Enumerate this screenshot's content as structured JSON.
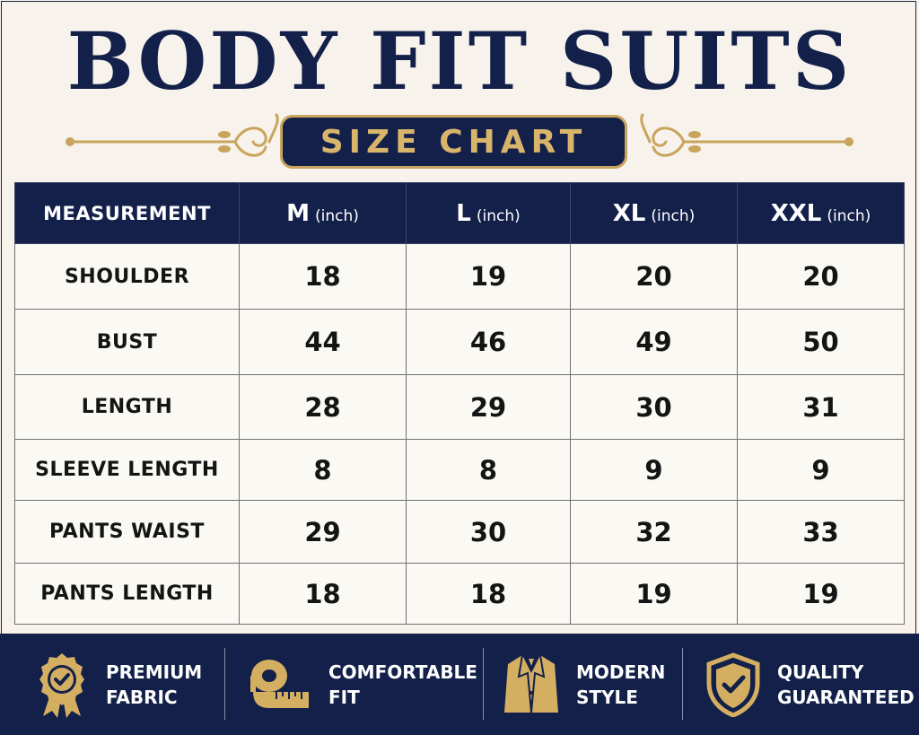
{
  "title": "BODY FIT SUITS",
  "subtitle": "SIZE CHART",
  "table": {
    "header": {
      "measurement": "MEASUREMENT",
      "unit": "(inch)",
      "sizes": [
        "M",
        "L",
        "XL",
        "XXL"
      ]
    },
    "rows": [
      {
        "label": "SHOULDER",
        "values": [
          "18",
          "19",
          "20",
          "20"
        ]
      },
      {
        "label": "BUST",
        "values": [
          "44",
          "46",
          "49",
          "50"
        ]
      },
      {
        "label": "LENGTH",
        "values": [
          "28",
          "29",
          "30",
          "31"
        ]
      },
      {
        "label": "SLEEVE LENGTH",
        "values": [
          "8",
          "8",
          "9",
          "9"
        ]
      },
      {
        "label": "PANTS WAIST",
        "values": [
          "29",
          "30",
          "32",
          "33"
        ]
      },
      {
        "label": "PANTS LENGTH",
        "values": [
          "18",
          "18",
          "19",
          "19"
        ]
      }
    ]
  },
  "features": [
    {
      "icon": "award-badge-icon",
      "line1": "PREMIUM",
      "line2": "FABRIC"
    },
    {
      "icon": "measuring-tape-icon",
      "line1": "COMFORTABLE",
      "line2": "FIT"
    },
    {
      "icon": "suit-jacket-icon",
      "line1": "MODERN",
      "line2": "STYLE"
    },
    {
      "icon": "shield-check-icon",
      "line1": "QUALITY",
      "line2": "GUARANTEED"
    }
  ],
  "colors": {
    "navy": "#13204a",
    "gold": "#c9a45c",
    "background": "#f7f3ec"
  }
}
